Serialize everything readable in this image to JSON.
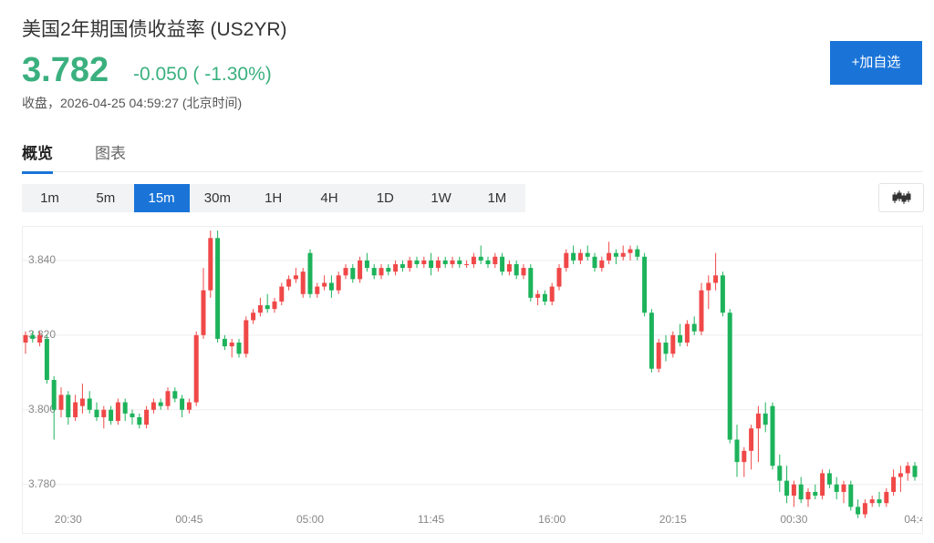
{
  "header": {
    "title": "美国2年期国债收益率 (US2YR)",
    "price": "3.782",
    "change": "-0.050 ( -1.30%)",
    "status": "收盘，2026-04-25 04:59:27 (北京时间)",
    "button": "+加自选"
  },
  "tabs": {
    "items": [
      "概览",
      "图表"
    ],
    "selected": "概览"
  },
  "intervals": {
    "items": [
      "1m",
      "5m",
      "15m",
      "30m",
      "1H",
      "4H",
      "1D",
      "1W",
      "1M"
    ],
    "selected": "15m"
  },
  "chart_data": {
    "type": "candlestick",
    "up_color": "#f04848",
    "down_color": "#1db35b",
    "grid": true,
    "ylim": [
      3.767,
      3.849
    ],
    "yticks": [
      {
        "value": 3.78,
        "label": "3.780"
      },
      {
        "value": 3.8,
        "label": "3.800"
      },
      {
        "value": 3.82,
        "label": "3.820"
      },
      {
        "value": 3.84,
        "label": "3.840"
      }
    ],
    "categories": [
      null,
      null,
      null,
      null,
      null,
      null,
      "20:30",
      null,
      null,
      null,
      null,
      null,
      null,
      null,
      null,
      null,
      null,
      null,
      null,
      null,
      null,
      null,
      null,
      "00:45",
      null,
      null,
      null,
      null,
      null,
      null,
      null,
      null,
      null,
      null,
      null,
      null,
      null,
      null,
      null,
      null,
      "05:00",
      null,
      null,
      null,
      null,
      null,
      null,
      null,
      null,
      null,
      null,
      null,
      null,
      null,
      null,
      null,
      null,
      "11:45",
      null,
      null,
      null,
      null,
      null,
      null,
      null,
      null,
      null,
      null,
      null,
      null,
      null,
      null,
      null,
      null,
      "16:00",
      null,
      null,
      null,
      null,
      null,
      null,
      null,
      null,
      null,
      null,
      null,
      null,
      null,
      null,
      null,
      null,
      "20:15",
      null,
      null,
      null,
      null,
      null,
      null,
      null,
      null,
      null,
      null,
      null,
      null,
      null,
      null,
      null,
      null,
      "00:30",
      null,
      null,
      null,
      null,
      null,
      null,
      null,
      null,
      null,
      null,
      null,
      null,
      null,
      null,
      null,
      null,
      "04:4"
    ],
    "candles": [
      [
        3.818,
        3.821,
        3.815,
        3.82
      ],
      [
        3.82,
        3.821,
        3.818,
        3.819
      ],
      [
        3.818,
        3.821,
        3.817,
        3.82
      ],
      [
        3.819,
        3.82,
        3.807,
        3.808
      ],
      [
        3.808,
        3.809,
        3.792,
        3.8
      ],
      [
        3.8,
        3.806,
        3.798,
        3.804
      ],
      [
        3.804,
        3.805,
        3.796,
        3.798
      ],
      [
        3.798,
        3.804,
        3.797,
        3.802
      ],
      [
        3.801,
        3.807,
        3.799,
        3.803
      ],
      [
        3.803,
        3.805,
        3.799,
        3.8
      ],
      [
        3.8,
        3.802,
        3.797,
        3.798
      ],
      [
        3.798,
        3.801,
        3.795,
        3.8
      ],
      [
        3.8,
        3.801,
        3.796,
        3.797
      ],
      [
        3.797,
        3.803,
        3.796,
        3.802
      ],
      [
        3.802,
        3.803,
        3.797,
        3.799
      ],
      [
        3.799,
        3.8,
        3.796,
        3.798
      ],
      [
        3.798,
        3.799,
        3.795,
        3.796
      ],
      [
        3.796,
        3.801,
        3.795,
        3.8
      ],
      [
        3.8,
        3.803,
        3.799,
        3.802
      ],
      [
        3.802,
        3.803,
        3.8,
        3.801
      ],
      [
        3.801,
        3.806,
        3.8,
        3.805
      ],
      [
        3.805,
        3.806,
        3.802,
        3.803
      ],
      [
        3.803,
        3.804,
        3.798,
        3.8
      ],
      [
        3.8,
        3.803,
        3.799,
        3.802
      ],
      [
        3.802,
        3.821,
        3.801,
        3.82
      ],
      [
        3.82,
        3.838,
        3.819,
        3.832
      ],
      [
        3.832,
        3.848,
        3.83,
        3.846
      ],
      [
        3.846,
        3.848,
        3.818,
        3.819
      ],
      [
        3.819,
        3.82,
        3.816,
        3.817
      ],
      [
        3.817,
        3.819,
        3.814,
        3.818
      ],
      [
        3.818,
        3.819,
        3.814,
        3.815
      ],
      [
        3.815,
        3.825,
        3.814,
        3.824
      ],
      [
        3.824,
        3.827,
        3.823,
        3.826
      ],
      [
        3.826,
        3.83,
        3.825,
        3.828
      ],
      [
        3.828,
        3.831,
        3.826,
        3.827
      ],
      [
        3.827,
        3.83,
        3.826,
        3.829
      ],
      [
        3.829,
        3.834,
        3.828,
        3.833
      ],
      [
        3.833,
        3.836,
        3.832,
        3.835
      ],
      [
        3.835,
        3.838,
        3.834,
        3.836
      ],
      [
        3.831,
        3.838,
        3.83,
        3.837
      ],
      [
        3.842,
        3.843,
        3.83,
        3.831
      ],
      [
        3.831,
        3.834,
        3.83,
        3.833
      ],
      [
        3.833,
        3.836,
        3.832,
        3.834
      ],
      [
        3.834,
        3.836,
        3.83,
        3.832
      ],
      [
        3.832,
        3.837,
        3.831,
        3.836
      ],
      [
        3.836,
        3.839,
        3.835,
        3.838
      ],
      [
        3.838,
        3.839,
        3.834,
        3.835
      ],
      [
        3.835,
        3.841,
        3.834,
        3.84
      ],
      [
        3.84,
        3.842,
        3.837,
        3.838
      ],
      [
        3.838,
        3.839,
        3.835,
        3.836
      ],
      [
        3.836,
        3.839,
        3.835,
        3.838
      ],
      [
        3.838,
        3.839,
        3.836,
        3.837
      ],
      [
        3.837,
        3.84,
        3.836,
        3.839
      ],
      [
        3.839,
        3.84,
        3.837,
        3.838
      ],
      [
        3.838,
        3.841,
        3.837,
        3.84
      ],
      [
        3.84,
        3.841,
        3.838,
        3.839
      ],
      [
        3.839,
        3.841,
        3.838,
        3.84
      ],
      [
        3.84,
        3.842,
        3.836,
        3.838
      ],
      [
        3.838,
        3.841,
        3.837,
        3.84
      ],
      [
        3.84,
        3.841,
        3.838,
        3.839
      ],
      [
        3.839,
        3.841,
        3.838,
        3.84
      ],
      [
        3.84,
        3.841,
        3.838,
        3.839
      ],
      [
        3.839,
        3.84,
        3.838,
        3.839
      ],
      [
        3.839,
        3.842,
        3.838,
        3.841
      ],
      [
        3.841,
        3.844,
        3.839,
        3.84
      ],
      [
        3.84,
        3.841,
        3.838,
        3.839
      ],
      [
        3.839,
        3.842,
        3.838,
        3.841
      ],
      [
        3.841,
        3.842,
        3.836,
        3.837
      ],
      [
        3.837,
        3.84,
        3.836,
        3.839
      ],
      [
        3.839,
        3.84,
        3.835,
        3.836
      ],
      [
        3.836,
        3.839,
        3.835,
        3.838
      ],
      [
        3.838,
        3.839,
        3.829,
        3.83
      ],
      [
        3.83,
        3.832,
        3.828,
        3.831
      ],
      [
        3.831,
        3.832,
        3.828,
        3.829
      ],
      [
        3.829,
        3.834,
        3.828,
        3.833
      ],
      [
        3.833,
        3.839,
        3.832,
        3.838
      ],
      [
        3.838,
        3.843,
        3.837,
        3.842
      ],
      [
        3.842,
        3.844,
        3.839,
        3.84
      ],
      [
        3.84,
        3.843,
        3.839,
        3.842
      ],
      [
        3.842,
        3.844,
        3.84,
        3.841
      ],
      [
        3.841,
        3.842,
        3.837,
        3.838
      ],
      [
        3.838,
        3.841,
        3.837,
        3.84
      ],
      [
        3.84,
        3.845,
        3.839,
        3.842
      ],
      [
        3.842,
        3.843,
        3.839,
        3.841
      ],
      [
        3.841,
        3.844,
        3.84,
        3.842
      ],
      [
        3.842,
        3.844,
        3.84,
        3.843
      ],
      [
        3.843,
        3.844,
        3.84,
        3.841
      ],
      [
        3.841,
        3.842,
        3.825,
        3.826
      ],
      [
        3.826,
        3.827,
        3.81,
        3.811
      ],
      [
        3.811,
        3.819,
        3.81,
        3.818
      ],
      [
        3.818,
        3.82,
        3.813,
        3.815
      ],
      [
        3.815,
        3.821,
        3.814,
        3.82
      ],
      [
        3.82,
        3.823,
        3.817,
        3.818
      ],
      [
        3.818,
        3.824,
        3.817,
        3.823
      ],
      [
        3.823,
        3.825,
        3.82,
        3.821
      ],
      [
        3.821,
        3.834,
        3.82,
        3.832
      ],
      [
        3.832,
        3.836,
        3.827,
        3.834
      ],
      [
        3.834,
        3.842,
        3.832,
        3.836
      ],
      [
        3.836,
        3.837,
        3.825,
        3.826
      ],
      [
        3.826,
        3.827,
        3.791,
        3.792
      ],
      [
        3.792,
        3.796,
        3.782,
        3.786
      ],
      [
        3.786,
        3.79,
        3.782,
        3.789
      ],
      [
        3.789,
        3.796,
        3.784,
        3.795
      ],
      [
        3.795,
        3.801,
        3.786,
        3.799
      ],
      [
        3.799,
        3.802,
        3.794,
        3.796
      ],
      [
        3.801,
        3.802,
        3.784,
        3.785
      ],
      [
        3.785,
        3.788,
        3.778,
        3.781
      ],
      [
        3.781,
        3.785,
        3.775,
        3.777
      ],
      [
        3.777,
        3.781,
        3.774,
        3.78
      ],
      [
        3.78,
        3.782,
        3.775,
        3.776
      ],
      [
        3.776,
        3.779,
        3.774,
        3.778
      ],
      [
        3.778,
        3.78,
        3.776,
        3.777
      ],
      [
        3.777,
        3.784,
        3.776,
        3.783
      ],
      [
        3.783,
        3.784,
        3.779,
        3.78
      ],
      [
        3.78,
        3.782,
        3.776,
        3.778
      ],
      [
        3.778,
        3.781,
        3.775,
        3.78
      ],
      [
        3.78,
        3.781,
        3.773,
        3.774
      ],
      [
        3.774,
        3.776,
        3.771,
        3.772
      ],
      [
        3.772,
        3.776,
        3.771,
        3.775
      ],
      [
        3.775,
        3.777,
        3.774,
        3.776
      ],
      [
        3.776,
        3.778,
        3.774,
        3.775
      ],
      [
        3.775,
        3.779,
        3.774,
        3.778
      ],
      [
        3.778,
        3.784,
        3.777,
        3.782
      ],
      [
        3.782,
        3.785,
        3.778,
        3.783
      ],
      [
        3.783,
        3.786,
        3.781,
        3.785
      ],
      [
        3.785,
        3.786,
        3.781,
        3.782
      ]
    ]
  }
}
